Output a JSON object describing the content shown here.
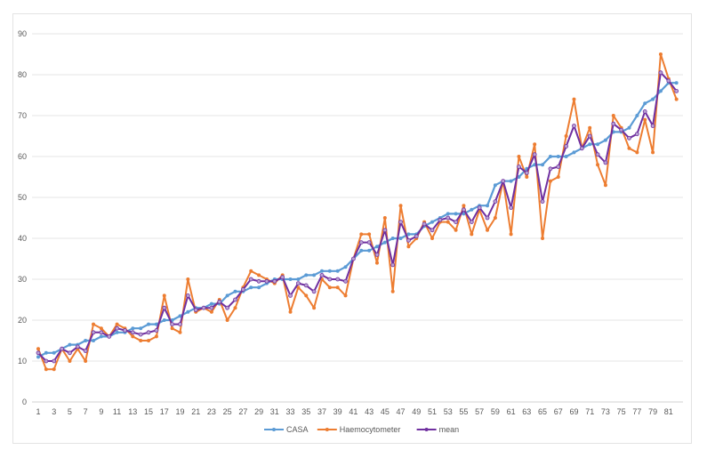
{
  "chart_data": {
    "type": "line",
    "title": "",
    "xlabel": "",
    "ylabel": "",
    "ylim": [
      0,
      90
    ],
    "yticks": [
      0,
      10,
      20,
      30,
      40,
      50,
      60,
      70,
      80,
      90
    ],
    "x": [
      1,
      2,
      3,
      4,
      5,
      6,
      7,
      8,
      9,
      10,
      11,
      12,
      13,
      14,
      15,
      16,
      17,
      18,
      19,
      20,
      21,
      22,
      23,
      24,
      25,
      26,
      27,
      28,
      29,
      30,
      31,
      32,
      33,
      34,
      35,
      36,
      37,
      38,
      39,
      40,
      41,
      42,
      43,
      44,
      45,
      46,
      47,
      48,
      49,
      50,
      51,
      52,
      53,
      54,
      55,
      56,
      57,
      58,
      59,
      60,
      61,
      62,
      63,
      64,
      65,
      66,
      67,
      68,
      69,
      70,
      71,
      72,
      73,
      74,
      75,
      76,
      77,
      78,
      79,
      80,
      81,
      82
    ],
    "xtick_labels": [
      1,
      3,
      5,
      7,
      9,
      11,
      13,
      15,
      17,
      19,
      21,
      23,
      25,
      27,
      29,
      31,
      33,
      35,
      37,
      39,
      41,
      43,
      45,
      47,
      49,
      51,
      53,
      55,
      57,
      59,
      61,
      63,
      65,
      67,
      69,
      71,
      73,
      75,
      77,
      79,
      81
    ],
    "grid": true,
    "legend": "bottom",
    "series": [
      {
        "name": "CASA",
        "color": "#5b9bd5",
        "values": [
          11,
          12,
          12,
          13,
          14,
          14,
          15,
          15,
          16,
          16,
          17,
          17,
          18,
          18,
          19,
          19,
          20,
          20,
          21,
          22,
          23,
          23,
          24,
          24,
          26,
          27,
          27,
          28,
          28,
          29,
          30,
          30,
          30,
          30,
          31,
          31,
          32,
          32,
          32,
          33,
          35,
          37,
          37,
          38,
          39,
          40,
          40,
          41,
          41,
          43,
          44,
          45,
          46,
          46,
          46,
          47,
          48,
          48,
          53,
          54,
          54,
          55,
          57,
          58,
          58,
          60,
          60,
          60,
          61,
          62,
          63,
          63,
          64,
          66,
          66,
          67,
          70,
          73,
          74,
          76,
          78,
          78
        ]
      },
      {
        "name": "Haemocytometer",
        "color": "#ed7d31",
        "values": [
          13,
          8,
          8,
          13,
          10,
          13,
          10,
          19,
          18,
          16,
          19,
          18,
          16,
          15,
          15,
          16,
          26,
          18,
          17,
          30,
          22,
          23,
          22,
          25,
          20,
          23,
          28,
          32,
          31,
          30,
          29,
          31,
          22,
          28,
          26,
          23,
          30,
          28,
          28,
          26,
          35,
          41,
          41,
          34,
          45,
          27,
          48,
          38,
          40,
          44,
          40,
          44,
          44,
          42,
          48,
          41,
          47,
          42,
          45,
          54,
          41,
          60,
          55,
          63,
          40,
          54,
          55,
          65,
          74,
          62,
          67,
          58,
          53,
          70,
          67,
          62,
          61,
          69,
          61,
          85,
          79,
          74
        ]
      },
      {
        "name": "mean",
        "color": "#7030a0",
        "values": [
          12,
          10,
          10,
          13,
          12,
          13.5,
          12.5,
          17,
          17,
          16,
          18,
          17.5,
          17,
          16.5,
          17,
          17.5,
          23,
          19,
          19,
          26,
          22.5,
          23,
          23,
          24.5,
          23,
          25,
          27.5,
          30,
          29.5,
          29.5,
          29.5,
          30.5,
          26,
          29,
          28.5,
          27,
          31,
          30,
          30,
          29.5,
          35,
          39,
          39,
          36,
          42,
          33.5,
          44,
          39.5,
          40.5,
          43.5,
          42,
          44.5,
          45,
          44,
          47,
          44,
          47.5,
          45,
          49,
          54,
          47.5,
          57.5,
          56,
          60.5,
          49,
          57,
          57.5,
          62.5,
          67.5,
          62,
          65,
          60.5,
          58.5,
          68,
          66.5,
          64.5,
          65.5,
          71,
          67.5,
          80.5,
          78.5,
          76
        ]
      }
    ]
  }
}
